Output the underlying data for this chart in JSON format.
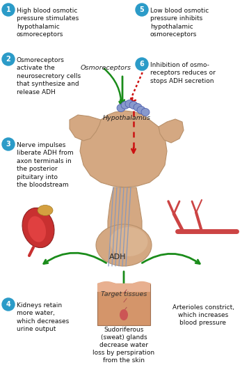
{
  "bg_color": "#ffffff",
  "teal_color": "#2b9bc8",
  "green_color": "#1a8c1a",
  "red_color": "#cc1111",
  "text_color": "#111111",
  "hypo_fill": "#d4a882",
  "hypo_edge": "#c09070",
  "nerve_color": "#8899bb",
  "cell_fill": "#8899cc",
  "cell_edge": "#5566aa",
  "kidney_color": "#c83030",
  "adrenal_color": "#d4a040",
  "skin_color": "#d4956a",
  "skin_top_color": "#e8b090",
  "artery_color": "#cc4444",
  "label1_text": "High blood osmotic\npressure stimulates\nhypothalamic\nosmoreceptors",
  "label2_text": "Osmoreceptors\nactivate the\nneurosecretory cells\nthat synthesize and\nrelease ADH",
  "label3_text": "Nerve impulses\nliberate ADH from\naxon terminals in\nthe posterior\npituitary into\nthe bloodstream",
  "label4_text": "Kidneys retain\nmore water,\nwhich decreases\nurine output",
  "label5_text": "Low blood osmotic\npressure inhibits\nhypothalamic\nosmoreceptors",
  "label6_text": "Inhibition of osmo-\nreceptors reduces or\nstops ADH secretion",
  "osmo_label": "Osmoreceptors",
  "hypo_label": "Hypothalamus",
  "adh_label": "ADH",
  "target_label": "Target tissues",
  "bottom_center_text": "Sudoriferous\n(sweat) glands\ndecrease water\nloss by perspiration\nfrom the skin",
  "bottom_right_text": "Arterioles constrict,\nwhich increases\nblood pressure",
  "font_size": 6.5,
  "font_size_italic": 6.8
}
